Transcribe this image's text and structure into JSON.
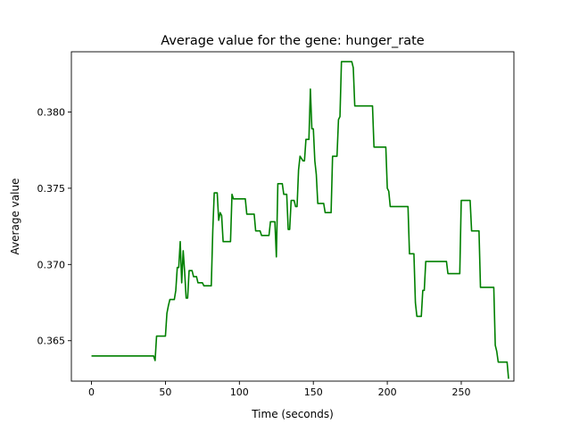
{
  "chart_data": {
    "type": "line",
    "title": "Average value for the gene: hunger_rate",
    "xlabel": "Time (seconds)",
    "ylabel": "Average value",
    "xlim": [
      -13.6,
      285.6
    ],
    "ylim": [
      0.36235,
      0.38395
    ],
    "xticks": [
      0,
      50,
      100,
      150,
      200,
      250
    ],
    "yticks": [
      0.365,
      0.37,
      0.375,
      0.38
    ],
    "xtick_labels": [
      "0",
      "50",
      "100",
      "150",
      "200",
      "250"
    ],
    "ytick_labels": [
      "0.365",
      "0.370",
      "0.375",
      "0.380"
    ],
    "grid": false,
    "series": [
      {
        "color": "#008000",
        "points": [
          [
            0,
            0.364
          ],
          [
            42,
            0.364
          ],
          [
            43,
            0.3637
          ],
          [
            44,
            0.3653
          ],
          [
            50,
            0.3653
          ],
          [
            51,
            0.3668
          ],
          [
            52,
            0.3673
          ],
          [
            53,
            0.3677
          ],
          [
            56,
            0.3677
          ],
          [
            57,
            0.3683
          ],
          [
            58,
            0.3698
          ],
          [
            59,
            0.3698
          ],
          [
            60,
            0.3715
          ],
          [
            61,
            0.3688
          ],
          [
            62,
            0.3709
          ],
          [
            63,
            0.3695
          ],
          [
            64,
            0.3678
          ],
          [
            65,
            0.3678
          ],
          [
            66,
            0.3696
          ],
          [
            68,
            0.3696
          ],
          [
            69,
            0.3692
          ],
          [
            71,
            0.3692
          ],
          [
            72,
            0.3688
          ],
          [
            75,
            0.3688
          ],
          [
            76,
            0.3686
          ],
          [
            81,
            0.3686
          ],
          [
            82,
            0.3722
          ],
          [
            83,
            0.3747
          ],
          [
            85,
            0.3747
          ],
          [
            86,
            0.3729
          ],
          [
            87,
            0.3734
          ],
          [
            88,
            0.3732
          ],
          [
            89,
            0.3715
          ],
          [
            94,
            0.3715
          ],
          [
            95,
            0.3746
          ],
          [
            96,
            0.3743
          ],
          [
            104,
            0.3743
          ],
          [
            105,
            0.3733
          ],
          [
            110,
            0.3733
          ],
          [
            111,
            0.3722
          ],
          [
            114,
            0.3722
          ],
          [
            115,
            0.3719
          ],
          [
            120,
            0.3719
          ],
          [
            121,
            0.3728
          ],
          [
            124,
            0.3728
          ],
          [
            125,
            0.3705
          ],
          [
            126,
            0.3753
          ],
          [
            129,
            0.3753
          ],
          [
            130,
            0.3746
          ],
          [
            132,
            0.3746
          ],
          [
            133,
            0.3723
          ],
          [
            134,
            0.3723
          ],
          [
            135,
            0.3742
          ],
          [
            137,
            0.3742
          ],
          [
            138,
            0.3738
          ],
          [
            139,
            0.3738
          ],
          [
            140,
            0.3762
          ],
          [
            141,
            0.3771
          ],
          [
            143,
            0.3768
          ],
          [
            144,
            0.3768
          ],
          [
            145,
            0.3782
          ],
          [
            147,
            0.3782
          ],
          [
            148,
            0.3815
          ],
          [
            149,
            0.3789
          ],
          [
            150,
            0.3789
          ],
          [
            151,
            0.3768
          ],
          [
            152,
            0.3759
          ],
          [
            153,
            0.374
          ],
          [
            157,
            0.374
          ],
          [
            158,
            0.3734
          ],
          [
            162,
            0.3734
          ],
          [
            163,
            0.3771
          ],
          [
            166,
            0.3771
          ],
          [
            167,
            0.3795
          ],
          [
            168,
            0.3797
          ],
          [
            169,
            0.3833
          ],
          [
            176,
            0.3833
          ],
          [
            177,
            0.3829
          ],
          [
            178,
            0.3804
          ],
          [
            190,
            0.3804
          ],
          [
            191,
            0.3777
          ],
          [
            199,
            0.3777
          ],
          [
            200,
            0.375
          ],
          [
            201,
            0.3748
          ],
          [
            202,
            0.3738
          ],
          [
            214,
            0.3738
          ],
          [
            215,
            0.3707
          ],
          [
            218,
            0.3707
          ],
          [
            219,
            0.3675
          ],
          [
            220,
            0.3666
          ],
          [
            223,
            0.3666
          ],
          [
            224,
            0.3683
          ],
          [
            225,
            0.3683
          ],
          [
            226,
            0.3702
          ],
          [
            240,
            0.3702
          ],
          [
            241,
            0.3694
          ],
          [
            249,
            0.3694
          ],
          [
            250,
            0.3742
          ],
          [
            256,
            0.3742
          ],
          [
            257,
            0.3722
          ],
          [
            262,
            0.3722
          ],
          [
            263,
            0.3685
          ],
          [
            272,
            0.3685
          ],
          [
            273,
            0.3647
          ],
          [
            274,
            0.3643
          ],
          [
            275,
            0.3636
          ],
          [
            281,
            0.3636
          ],
          [
            282,
            0.3625
          ]
        ]
      }
    ]
  }
}
